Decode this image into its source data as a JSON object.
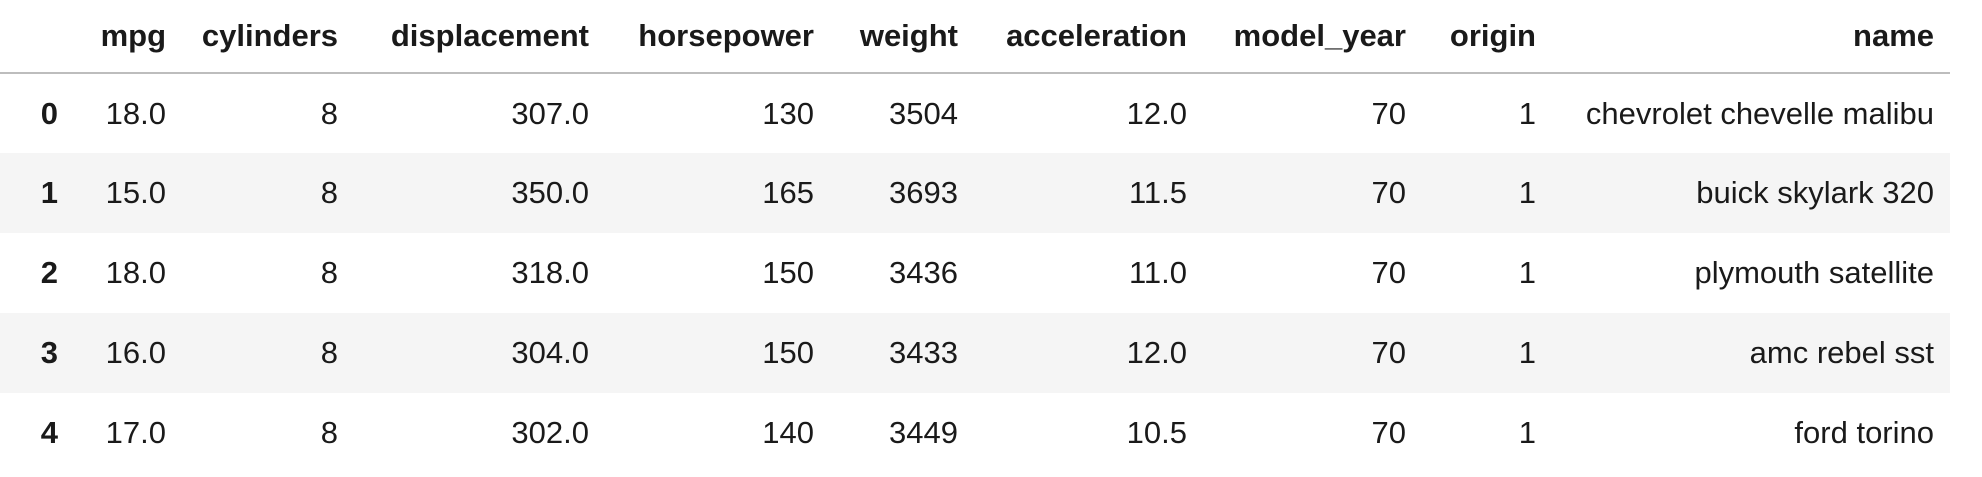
{
  "table": {
    "columns": [
      "",
      "mpg",
      "cylinders",
      "displacement",
      "horsepower",
      "weight",
      "acceleration",
      "model_year",
      "origin",
      "name"
    ],
    "rows": [
      {
        "index": "0",
        "mpg": "18.0",
        "cylinders": "8",
        "displacement": "307.0",
        "horsepower": "130",
        "weight": "3504",
        "acceleration": "12.0",
        "model_year": "70",
        "origin": "1",
        "name": "chevrolet chevelle malibu"
      },
      {
        "index": "1",
        "mpg": "15.0",
        "cylinders": "8",
        "displacement": "350.0",
        "horsepower": "165",
        "weight": "3693",
        "acceleration": "11.5",
        "model_year": "70",
        "origin": "1",
        "name": "buick skylark 320"
      },
      {
        "index": "2",
        "mpg": "18.0",
        "cylinders": "8",
        "displacement": "318.0",
        "horsepower": "150",
        "weight": "3436",
        "acceleration": "11.0",
        "model_year": "70",
        "origin": "1",
        "name": "plymouth satellite"
      },
      {
        "index": "3",
        "mpg": "16.0",
        "cylinders": "8",
        "displacement": "304.0",
        "horsepower": "150",
        "weight": "3433",
        "acceleration": "12.0",
        "model_year": "70",
        "origin": "1",
        "name": "amc rebel sst"
      },
      {
        "index": "4",
        "mpg": "17.0",
        "cylinders": "8",
        "displacement": "302.0",
        "horsepower": "140",
        "weight": "3449",
        "acceleration": "10.5",
        "model_year": "70",
        "origin": "1",
        "name": "ford torino"
      }
    ]
  },
  "colors": {
    "header_text": "#1a1a1a",
    "cell_text": "#1a1a1a",
    "stripe_bg": "#f5f5f5",
    "header_border": "#bdbdbd"
  }
}
